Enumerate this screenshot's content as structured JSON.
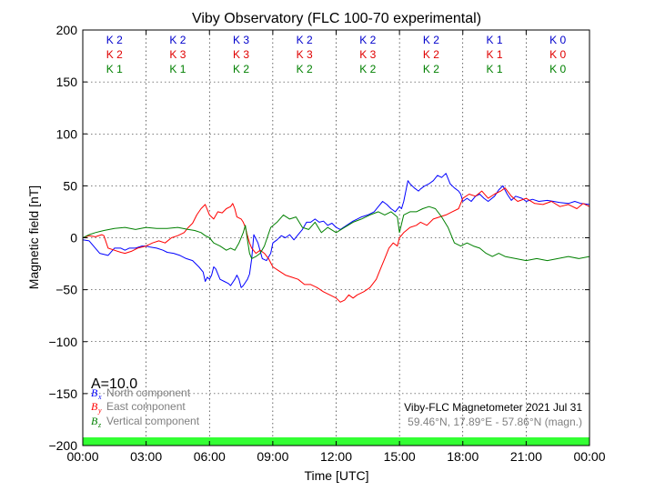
{
  "chart_data": {
    "type": "line",
    "title": "Viby Observatory (FLC 100-70 experimental)",
    "xlabel": "Time [UTC]",
    "ylabel": "Magnetic field [nT]",
    "xlim": [
      0,
      24
    ],
    "ylim": [
      -200,
      200
    ],
    "x_ticks": [
      0,
      3,
      6,
      9,
      12,
      15,
      18,
      21,
      24
    ],
    "x_tick_labels": [
      "00:00",
      "03:00",
      "06:00",
      "09:00",
      "12:00",
      "15:00",
      "18:00",
      "21:00",
      "00:00"
    ],
    "y_ticks": [
      200,
      150,
      100,
      50,
      0,
      -50,
      -100,
      -150,
      -200
    ],
    "y_tick_labels": [
      "200",
      "150",
      "100",
      "50",
      "0",
      "−50",
      "−100",
      "−150",
      "−200"
    ],
    "grid": true,
    "a_index": "A=10.0",
    "station": "Viby-FLC Magnetometer 2021 Jul 31",
    "coords": "59.46°N, 17.89°E - 57.86°N (magn.)",
    "k_index_x": [
      1.5,
      4.5,
      7.5,
      10.5,
      13.5,
      16.5,
      19.5,
      22.5
    ],
    "k_indices": [
      {
        "color": "#0000cc",
        "labels": [
          "K 2",
          "K 2",
          "K 3",
          "K 2",
          "K 2",
          "K 2",
          "K 1",
          "K 0"
        ]
      },
      {
        "color": "#e00000",
        "labels": [
          "K 2",
          "K 3",
          "K 3",
          "K 3",
          "K 3",
          "K 2",
          "K 1",
          "K 0"
        ]
      },
      {
        "color": "#008000",
        "labels": [
          "K 1",
          "K 1",
          "K 2",
          "K 2",
          "K 2",
          "K 2",
          "K 1",
          "K 0"
        ]
      }
    ],
    "legend": [
      {
        "sym": "B",
        "sub": "x",
        "label": "North component",
        "color": "#0000ff"
      },
      {
        "sym": "B",
        "sub": "y",
        "label": "East component",
        "color": "#ff0000"
      },
      {
        "sym": "B",
        "sub": "z",
        "label": "Vertical component",
        "color": "#008000"
      }
    ],
    "series": [
      {
        "color": "#0000ff",
        "x": [
          0,
          0.3,
          0.8,
          1.2,
          1.5,
          1.8,
          2.0,
          2.2,
          2.5,
          2.8,
          3.0,
          3.2,
          3.5,
          3.8,
          4.0,
          4.3,
          4.6,
          4.9,
          5.2,
          5.5,
          5.7,
          5.8,
          5.9,
          6.0,
          6.1,
          6.2,
          6.3,
          6.5,
          6.7,
          6.9,
          7.0,
          7.1,
          7.2,
          7.3,
          7.4,
          7.5,
          7.6,
          7.7,
          7.8,
          7.9,
          8.0,
          8.1,
          8.3,
          8.5,
          8.7,
          8.9,
          9.0,
          9.2,
          9.4,
          9.6,
          9.8,
          10.0,
          10.2,
          10.4,
          10.6,
          10.8,
          11.0,
          11.2,
          11.4,
          11.6,
          11.8,
          12.0,
          12.2,
          12.5,
          12.8,
          13.0,
          13.2,
          13.5,
          13.8,
          14.0,
          14.2,
          14.4,
          14.6,
          14.8,
          15.0,
          15.1,
          15.2,
          15.3,
          15.4,
          15.5,
          15.7,
          15.9,
          16.0,
          16.2,
          16.4,
          16.6,
          16.8,
          17.0,
          17.2,
          17.4,
          17.6,
          17.8,
          17.9,
          18.0,
          18.2,
          18.4,
          18.6,
          18.8,
          19.0,
          19.2,
          19.5,
          19.7,
          19.9,
          20.1,
          20.3,
          20.5,
          20.8,
          21.0,
          21.3,
          21.6,
          22.0,
          22.3,
          22.6,
          23.0,
          23.3,
          23.6,
          24.0
        ],
        "y": [
          -2,
          -3,
          -15,
          -17,
          -10,
          -10,
          -12,
          -10,
          -10,
          -8,
          -8,
          -9,
          -10,
          -12,
          -14,
          -15,
          -17,
          -20,
          -22,
          -28,
          -33,
          -42,
          -38,
          -40,
          -36,
          -28,
          -30,
          -40,
          -42,
          -44,
          -46,
          -43,
          -40,
          -36,
          -40,
          -48,
          -46,
          -43,
          -40,
          -35,
          -20,
          3,
          -5,
          -20,
          -22,
          -15,
          -5,
          -2,
          2,
          0,
          3,
          -2,
          3,
          8,
          15,
          15,
          18,
          15,
          16,
          12,
          14,
          10,
          8,
          12,
          16,
          18,
          20,
          22,
          25,
          30,
          35,
          32,
          28,
          25,
          30,
          28,
          35,
          45,
          55,
          52,
          48,
          45,
          47,
          50,
          52,
          55,
          60,
          58,
          62,
          52,
          48,
          45,
          42,
          35,
          38,
          35,
          40,
          42,
          38,
          35,
          40,
          46,
          50,
          42,
          36,
          40,
          38,
          35,
          37,
          35,
          36,
          35,
          34,
          33,
          35,
          33,
          32
        ]
      },
      {
        "color": "#ff0000",
        "x": [
          0,
          0.3,
          0.6,
          0.9,
          1.0,
          1.2,
          1.5,
          1.8,
          2.0,
          2.3,
          2.6,
          3.0,
          3.3,
          3.6,
          3.9,
          4.2,
          4.5,
          4.8,
          5.0,
          5.2,
          5.4,
          5.6,
          5.8,
          6.0,
          6.2,
          6.4,
          6.6,
          6.8,
          7.0,
          7.1,
          7.2,
          7.3,
          7.5,
          7.6,
          7.7,
          7.8,
          7.9,
          8.0,
          8.2,
          8.4,
          8.6,
          8.8,
          9.0,
          9.3,
          9.6,
          9.9,
          10.2,
          10.5,
          10.8,
          11.1,
          11.4,
          11.7,
          12.0,
          12.2,
          12.4,
          12.6,
          12.8,
          13.0,
          13.3,
          13.6,
          13.9,
          14.1,
          14.3,
          14.5,
          14.7,
          14.9,
          15.0,
          15.2,
          15.5,
          15.8,
          16.0,
          16.3,
          16.6,
          16.9,
          17.2,
          17.5,
          17.8,
          18.0,
          18.3,
          18.6,
          18.9,
          19.2,
          19.5,
          19.8,
          20.0,
          20.3,
          20.6,
          21.0,
          21.4,
          21.8,
          22.2,
          22.6,
          23.0,
          23.4,
          23.7,
          24.0
        ],
        "y": [
          0,
          2,
          1,
          3,
          2,
          -10,
          -12,
          -14,
          -15,
          -13,
          -10,
          -8,
          -5,
          -3,
          -5,
          0,
          2,
          5,
          10,
          14,
          22,
          28,
          32,
          22,
          18,
          25,
          24,
          28,
          30,
          33,
          28,
          20,
          18,
          15,
          10,
          2,
          -5,
          -10,
          -15,
          -12,
          -15,
          -20,
          -28,
          -32,
          -36,
          -38,
          -40,
          -45,
          -45,
          -48,
          -52,
          -55,
          -58,
          -62,
          -60,
          -55,
          -58,
          -55,
          -52,
          -48,
          -40,
          -30,
          -20,
          -10,
          -5,
          -8,
          0,
          5,
          10,
          12,
          15,
          12,
          18,
          20,
          22,
          25,
          28,
          38,
          42,
          40,
          45,
          38,
          42,
          45,
          48,
          40,
          35,
          38,
          33,
          32,
          35,
          30,
          32,
          28,
          33,
          30
        ]
      },
      {
        "color": "#008000",
        "x": [
          0,
          0.3,
          0.6,
          1.0,
          1.5,
          2.0,
          2.5,
          3.0,
          3.5,
          4.0,
          4.5,
          5.0,
          5.3,
          5.6,
          5.8,
          6.0,
          6.2,
          6.5,
          6.8,
          7.0,
          7.2,
          7.4,
          7.6,
          7.7,
          7.8,
          7.9,
          8.0,
          8.2,
          8.4,
          8.6,
          8.9,
          9.2,
          9.5,
          9.8,
          10.1,
          10.4,
          10.7,
          11.0,
          11.3,
          11.6,
          12.0,
          12.4,
          12.8,
          13.2,
          13.6,
          14.0,
          14.3,
          14.6,
          14.9,
          15.0,
          15.2,
          15.5,
          15.8,
          16.1,
          16.4,
          16.7,
          17.0,
          17.3,
          17.6,
          17.9,
          18.2,
          18.5,
          18.8,
          19.1,
          19.4,
          19.7,
          20.0,
          20.5,
          21.0,
          21.5,
          22.0,
          22.5,
          23.0,
          23.5,
          24.0
        ],
        "y": [
          0,
          3,
          5,
          7,
          9,
          10,
          8,
          10,
          9,
          9,
          10,
          8,
          7,
          5,
          2,
          0,
          -5,
          -8,
          -12,
          -10,
          -12,
          -5,
          5,
          12,
          -2,
          -15,
          -20,
          -18,
          -15,
          -8,
          10,
          15,
          22,
          18,
          20,
          10,
          8,
          15,
          5,
          10,
          5,
          10,
          15,
          18,
          22,
          25,
          22,
          25,
          20,
          5,
          22,
          25,
          25,
          28,
          30,
          28,
          20,
          10,
          -5,
          -8,
          -5,
          -8,
          -10,
          -15,
          -18,
          -15,
          -18,
          -20,
          -22,
          -20,
          -22,
          -20,
          -18,
          -20,
          -18
        ]
      }
    ]
  }
}
